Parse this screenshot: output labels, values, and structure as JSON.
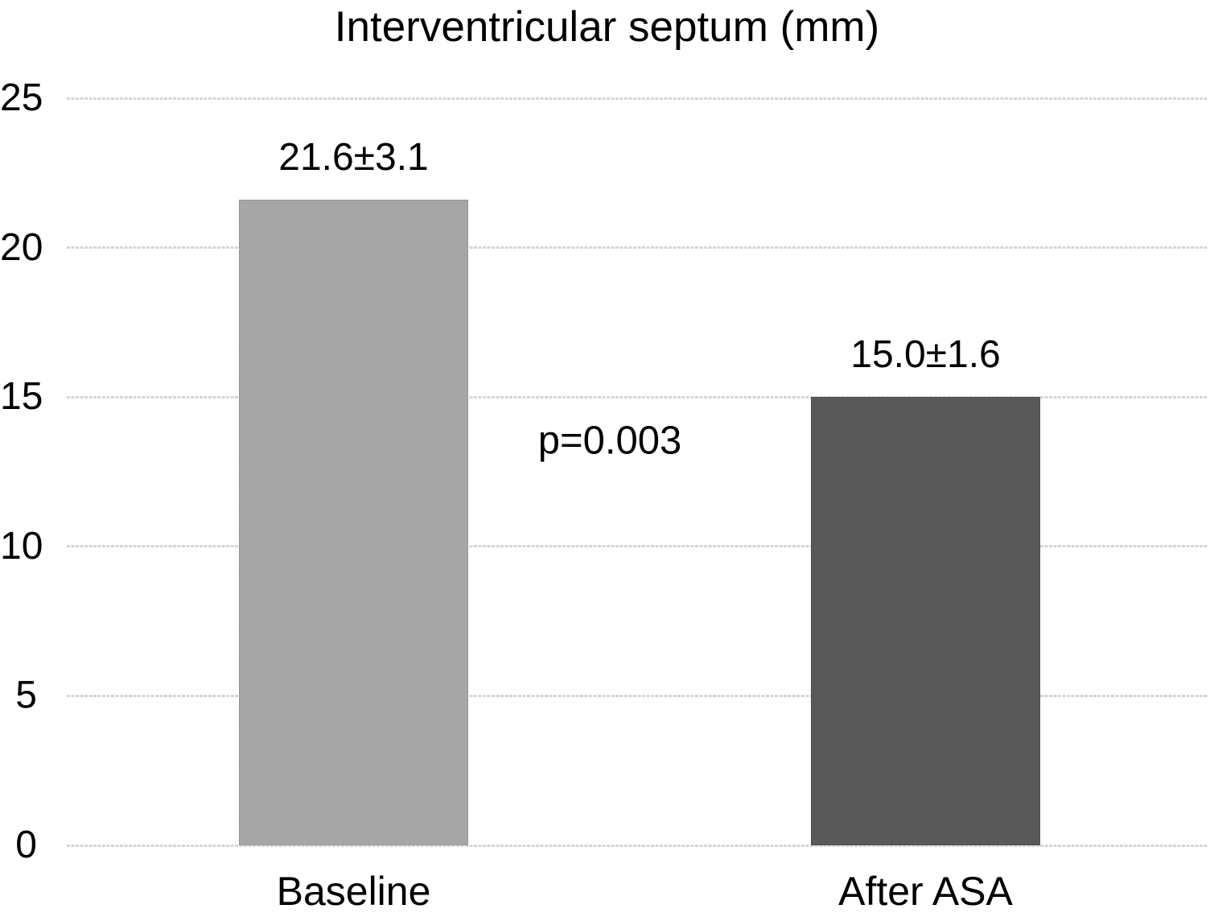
{
  "chart_data": {
    "type": "bar",
    "title": "Interventricular septum (mm)",
    "categories": [
      "Baseline",
      "After ASA"
    ],
    "values": [
      21.6,
      15.0
    ],
    "bar_labels": [
      "21.6±3.1",
      "15.0±1.6"
    ],
    "bar_colors": [
      "#a6a6a6",
      "#595959"
    ],
    "annotation": "p=0.003",
    "xlabel": "",
    "ylabel": "",
    "ylim": [
      0,
      25
    ],
    "yticks": [
      0,
      5,
      10,
      15,
      20,
      25
    ],
    "grid": true,
    "legend": "none",
    "gridline_color": "#d6d6d6",
    "text_color": "#000000",
    "background_color": "#ffffff"
  }
}
